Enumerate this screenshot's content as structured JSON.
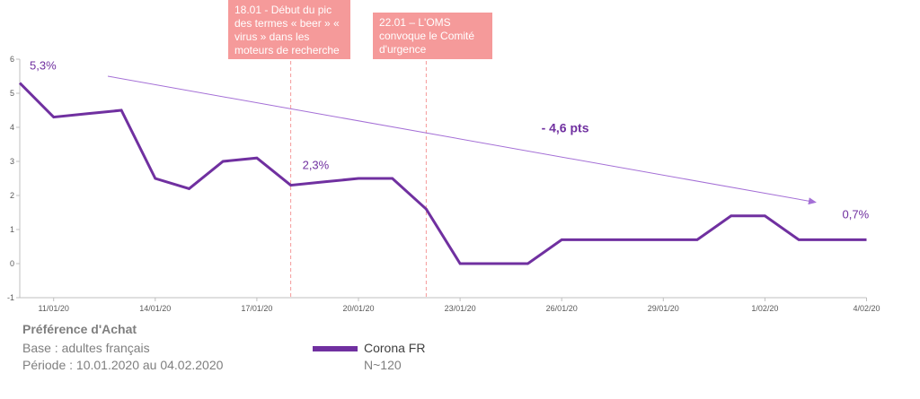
{
  "chart_data": {
    "type": "line",
    "x": [
      "10/01/20",
      "11/01/20",
      "12/01/20",
      "13/01/20",
      "14/01/20",
      "15/01/20",
      "16/01/20",
      "17/01/20",
      "18/01/20",
      "19/01/20",
      "20/01/20",
      "21/01/20",
      "22/01/20",
      "23/01/20",
      "24/01/20",
      "25/01/20",
      "26/01/20",
      "27/01/20",
      "28/01/20",
      "29/01/20",
      "30/01/20",
      "31/01/20",
      "1/02/20",
      "2/02/20",
      "3/02/20",
      "4/02/20"
    ],
    "x_tick_labels": [
      "11/01/20",
      "14/01/20",
      "17/01/20",
      "20/01/20",
      "23/01/20",
      "26/01/20",
      "29/01/20",
      "1/02/20",
      "4/02/20"
    ],
    "series": [
      {
        "name": "Corona FR",
        "values": [
          5.3,
          4.3,
          4.4,
          4.5,
          2.5,
          2.2,
          3.0,
          3.1,
          2.3,
          2.4,
          2.5,
          2.5,
          1.6,
          0,
          0,
          0,
          0.7,
          0.7,
          0.7,
          0.7,
          0.7,
          1.4,
          1.4,
          0.7,
          0.7,
          0.7
        ],
        "color": "#7030a0"
      }
    ],
    "ylim": [
      -1,
      6
    ],
    "y_ticks": [
      "-1",
      "0",
      "1",
      "2",
      "3",
      "4",
      "5",
      "6"
    ],
    "title": "",
    "xlabel": "",
    "ylabel": "",
    "grid": false,
    "annotations": {
      "start_label": "5,3%",
      "mid_label": "2,3%",
      "end_label": "0,7%",
      "trend_label": "- 4,6 pts",
      "trend_color": "#a46fd6",
      "label_color": "#7030a0",
      "event_line_color": "#f59a9a",
      "events": [
        {
          "x": "18/01/20",
          "text": "18.01 - Début du pic des termes « beer » « virus » dans les moteurs de recherche"
        },
        {
          "x": "22/01/20",
          "text": "22.01 – L'OMS convoque le Comité d'urgence"
        }
      ]
    }
  },
  "footer": {
    "title": "Préférence d'Achat",
    "base": "Base : adultes français",
    "period": "Période : 10.01.2020 au 04.02.2020"
  },
  "legend": {
    "name": "Corona FR",
    "n": "N~120"
  }
}
